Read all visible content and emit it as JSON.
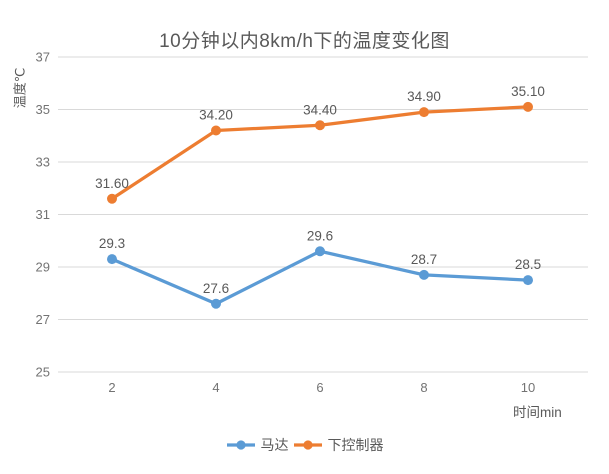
{
  "chart": {
    "title": "10分钟以内8km/h下的温度变化图",
    "ylabel": "温度℃",
    "xlabel": "时间min",
    "legend": [
      {
        "label": "马达",
        "color": "#5B9BD5"
      },
      {
        "label": "下控制器",
        "color": "#ED7D31"
      }
    ]
  },
  "chart_data": {
    "type": "line",
    "title": "10分钟以内8km/h下的温度变化图",
    "xlabel": "时间min",
    "ylabel": "温度℃",
    "x": [
      2,
      4,
      6,
      8,
      10
    ],
    "series": [
      {
        "name": "马达",
        "color": "#5B9BD5",
        "values": [
          29.3,
          27.6,
          29.6,
          28.7,
          28.5
        ],
        "labels": [
          "29.3",
          "27.6",
          "29.6",
          "28.7",
          "28.5"
        ]
      },
      {
        "name": "下控制器",
        "color": "#ED7D31",
        "values": [
          31.6,
          34.2,
          34.4,
          34.9,
          35.1
        ],
        "labels": [
          "31.60",
          "34.20",
          "34.40",
          "34.90",
          "35.10"
        ]
      }
    ],
    "ylim": [
      25,
      37
    ],
    "yticks": [
      25,
      27,
      29,
      31,
      33,
      35,
      37
    ],
    "grid": true,
    "legend_position": "bottom"
  },
  "colors": {
    "gridline": "#d9d9d9",
    "tick_text": "#737373",
    "label_text": "#595959",
    "background": "#ffffff"
  }
}
